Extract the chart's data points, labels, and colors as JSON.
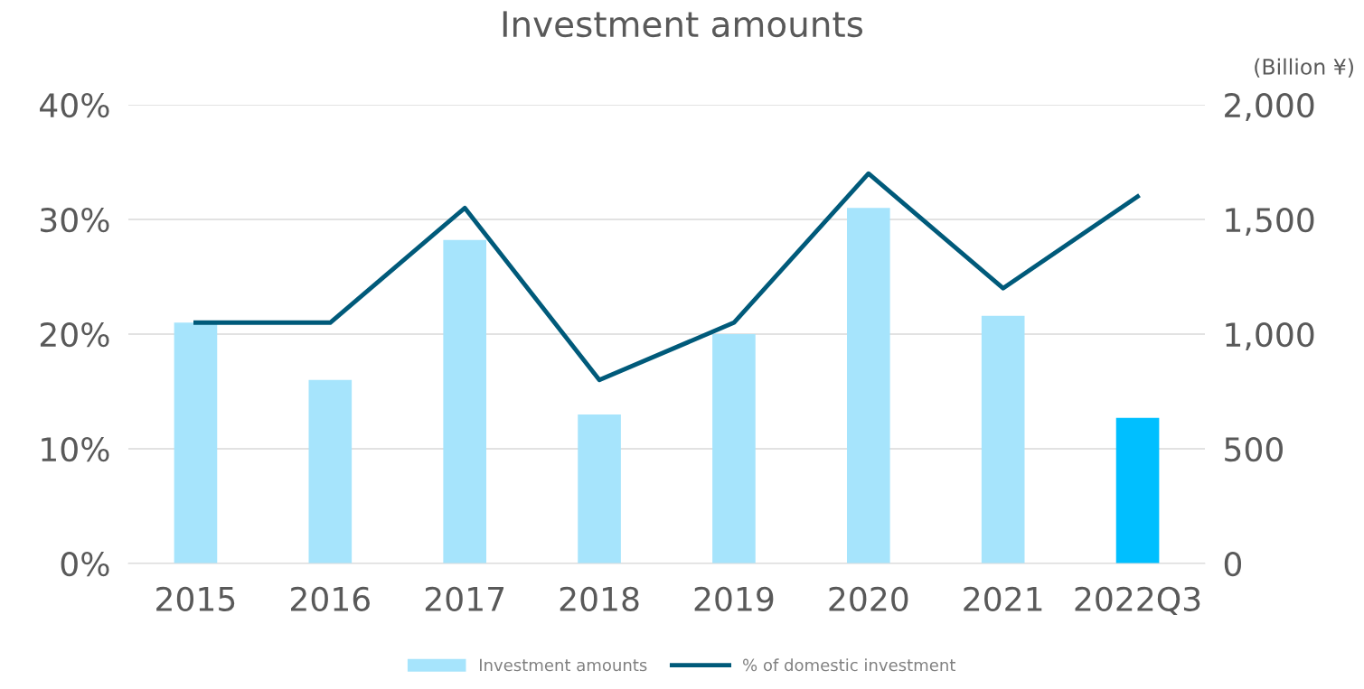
{
  "chart_data": {
    "type": "bar",
    "title": "Investment amounts",
    "y2label": "(Billion ¥)",
    "categories": [
      "2015",
      "2016",
      "2017",
      "2018",
      "2019",
      "2020",
      "2021",
      "2022Q3"
    ],
    "series": [
      {
        "name": "Investment amounts",
        "axis": "y2",
        "color": "#a6e4fc",
        "colors": [
          "#a6e4fc",
          "#a6e4fc",
          "#a6e4fc",
          "#a6e4fc",
          "#a6e4fc",
          "#a6e4fc",
          "#a6e4fc",
          "#00bfff"
        ],
        "values": [
          1050,
          800,
          1410,
          650,
          1000,
          1550,
          1080,
          635
        ]
      },
      {
        "name": "% of domestic investment",
        "type": "line",
        "axis": "y",
        "color": "#005a7a",
        "values": [
          21,
          21,
          31,
          16,
          21,
          34,
          24,
          32
        ]
      }
    ],
    "ylim": [
      0,
      40
    ],
    "yticks": [
      {
        "value": 0,
        "label": "0%"
      },
      {
        "value": 10,
        "label": "10%"
      },
      {
        "value": 20,
        "label": "20%"
      },
      {
        "value": 30,
        "label": "30%"
      },
      {
        "value": 40,
        "label": "40%"
      }
    ],
    "y2lim": [
      0,
      2000
    ],
    "y2ticks": [
      0,
      {
        "value": 500,
        "label": "500"
      },
      {
        "value": 1000,
        "label": "1,000"
      },
      {
        "value": 1500,
        "label": "1,500"
      },
      {
        "value": 2000,
        "label": "2,000"
      }
    ],
    "grid": "y",
    "legend": "bottom",
    "marker": "none",
    "line_style": "solid"
  }
}
